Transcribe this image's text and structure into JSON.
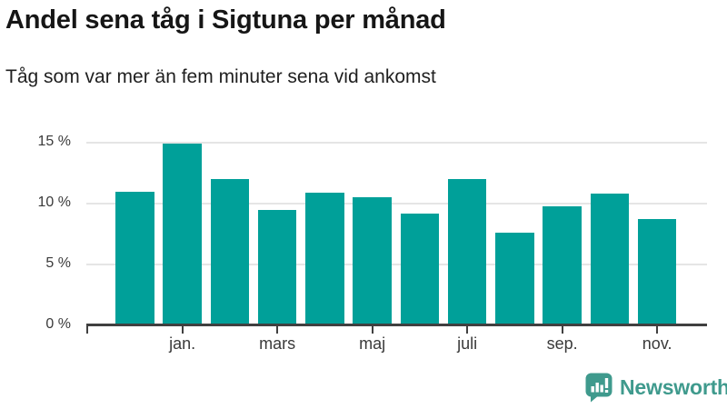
{
  "chart_data": {
    "type": "bar",
    "title": "Andel sena tåg i Sigtuna per månad",
    "subtitle": "Tåg som var mer än fem minuter sena vid ankomst",
    "categories": [
      "",
      "jan.",
      "",
      "mars",
      "",
      "maj",
      "",
      "juli",
      "",
      "sep.",
      "",
      "nov."
    ],
    "values": [
      11.0,
      14.9,
      12.0,
      9.5,
      10.9,
      10.5,
      9.2,
      12.0,
      7.6,
      9.8,
      10.8,
      8.7
    ],
    "unit": "%",
    "y_ticks": [
      0,
      5,
      10,
      15
    ],
    "y_tick_labels": [
      "0 %",
      "5 %",
      "10 %",
      "15 %"
    ],
    "ylim": [
      0,
      16.2
    ],
    "grid": "horizontal-only",
    "legend": "none",
    "bar_color": "#00a099",
    "axis_color": "#404040",
    "gridline_color": "#e5e5e5",
    "label_color": "#3a3a3a"
  },
  "branding": {
    "logo_text": "Newsworthy",
    "logo_color": "#3f9a8d",
    "icon": "speech-bubble-bar-chart"
  }
}
